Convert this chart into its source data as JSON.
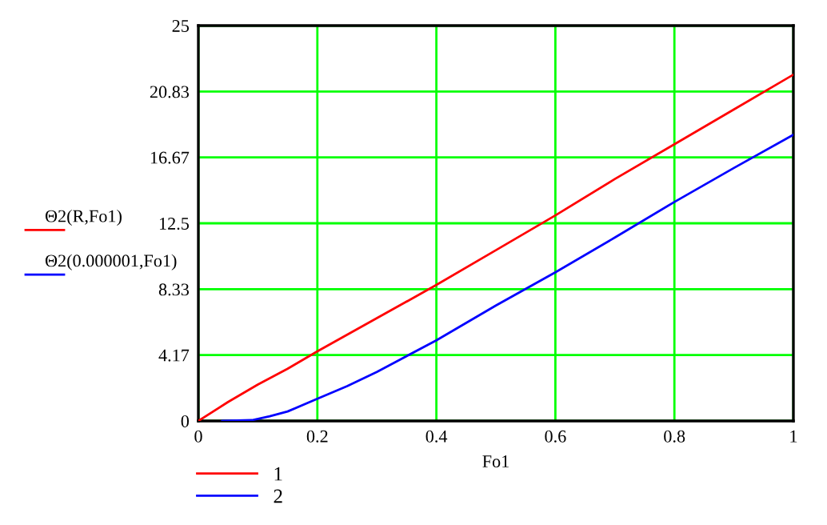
{
  "chart_data": {
    "type": "line",
    "xlabel": "Fo1",
    "annotations": [
      "Θ2(R,Fo1)",
      "Θ2(0.000001,Fo1)"
    ],
    "series": [
      {
        "name": "1",
        "color": "#ff0000",
        "x": [
          0,
          0.05,
          0.1,
          0.15,
          0.2,
          0.3,
          0.4,
          0.5,
          0.6,
          0.7,
          0.8,
          0.9,
          1
        ],
        "values": [
          0,
          1.2,
          2.3,
          3.3,
          4.4,
          6.5,
          8.6,
          10.8,
          13.0,
          15.3,
          17.5,
          19.7,
          21.9
        ]
      },
      {
        "name": "2",
        "color": "#0000ff",
        "x": [
          0.04,
          0.09,
          0.12,
          0.15,
          0.2,
          0.25,
          0.3,
          0.35,
          0.4,
          0.5,
          0.6,
          0.7,
          0.8,
          0.9,
          1
        ],
        "values": [
          0,
          0.05,
          0.3,
          0.6,
          1.4,
          2.2,
          3.1,
          4.1,
          5.1,
          7.3,
          9.4,
          11.6,
          13.85,
          16.0,
          18.1
        ]
      }
    ],
    "xlim": [
      0,
      1
    ],
    "xticks": [
      0,
      0.2,
      0.4,
      0.6,
      0.8,
      1
    ],
    "ylim": [
      0,
      25
    ],
    "yticks": [
      0,
      4.17,
      8.33,
      12.5,
      16.67,
      20.83,
      25
    ],
    "grid": true,
    "legend": "bottom left",
    "line_style": "solid",
    "marker": "none"
  }
}
